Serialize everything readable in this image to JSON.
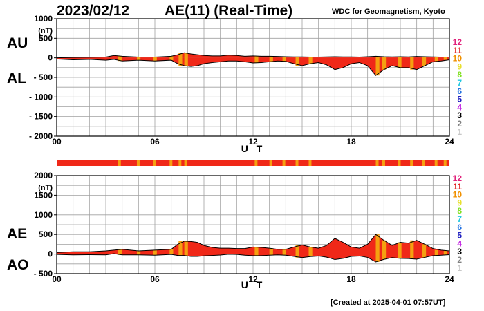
{
  "header": {
    "date": "2023/02/12",
    "title": "AE(11) (Real-Time)",
    "org": "WDC for Geomagnetism, Kyoto"
  },
  "labels": {
    "au": "AU",
    "al": "AL",
    "ae": "AE",
    "ao": "AO"
  },
  "footer": {
    "created": "[Created at 2025-04-01 07:57UT]"
  },
  "colors": {
    "fill": "#f02818",
    "fill_gap": "#f5a010",
    "grid": "#a0a0a0"
  },
  "stations_legend": [
    {
      "n": "12",
      "color": "#e0207a"
    },
    {
      "n": "11",
      "color": "#e02020"
    },
    {
      "n": "10",
      "color": "#f09000"
    },
    {
      "n": "9",
      "color": "#e8e030"
    },
    {
      "n": "8",
      "color": "#80e020"
    },
    {
      "n": "7",
      "color": "#20c8e0"
    },
    {
      "n": "6",
      "color": "#2070e0"
    },
    {
      "n": "5",
      "color": "#2020c0"
    },
    {
      "n": "4",
      "color": "#c020e0"
    },
    {
      "n": "3",
      "color": "#000000"
    },
    {
      "n": "2",
      "color": "#808080"
    },
    {
      "n": "1",
      "color": "#c8c8c8"
    }
  ],
  "chart_data": [
    {
      "type": "area",
      "panel": "AU/AL",
      "xlabel": "U T",
      "unit": "(nT)",
      "xlim": [
        0,
        24
      ],
      "ylim": [
        -2000,
        1000
      ],
      "xticks": [
        "00",
        "06",
        "12",
        "18",
        "24"
      ],
      "yticks": [
        "1000",
        "500",
        "0",
        "- 500",
        "- 1000",
        "- 1500",
        "- 2000"
      ],
      "series": [
        {
          "name": "AU",
          "x": [
            0,
            1,
            2,
            3,
            3.5,
            4,
            5,
            6,
            7,
            7.4,
            7.8,
            8.2,
            8.6,
            9,
            9.5,
            10,
            10.5,
            11,
            11.5,
            12,
            12.5,
            13,
            13.5,
            14,
            14.5,
            15,
            15.5,
            16,
            16.5,
            17,
            17.5,
            18,
            18.5,
            19,
            19.5,
            20,
            20.5,
            21,
            21.5,
            22,
            22.5,
            23,
            23.5,
            24
          ],
          "values": [
            0,
            10,
            15,
            20,
            60,
            40,
            20,
            20,
            40,
            80,
            130,
            100,
            80,
            60,
            50,
            50,
            70,
            60,
            40,
            50,
            40,
            40,
            35,
            30,
            25,
            25,
            20,
            20,
            25,
            30,
            25,
            25,
            20,
            30,
            40,
            30,
            25,
            30,
            25,
            35,
            30,
            25,
            20,
            20
          ]
        },
        {
          "name": "AL",
          "x": [
            0,
            1,
            2,
            3,
            3.5,
            4,
            5,
            6,
            7,
            7.4,
            7.8,
            8.2,
            8.6,
            9,
            9.5,
            10,
            10.5,
            11,
            11.5,
            12,
            12.5,
            13,
            13.5,
            14,
            14.5,
            15,
            15.5,
            16,
            16.5,
            17,
            17.5,
            18,
            18.5,
            19,
            19.5,
            20,
            20.5,
            21,
            21.5,
            22,
            22.5,
            23,
            23.5,
            24
          ],
          "values": [
            -30,
            -50,
            -40,
            -60,
            -40,
            -80,
            -60,
            -80,
            -60,
            -150,
            -200,
            -220,
            -200,
            -150,
            -120,
            -100,
            -80,
            -80,
            -100,
            -130,
            -120,
            -100,
            -80,
            -90,
            -150,
            -200,
            -150,
            -120,
            -180,
            -300,
            -250,
            -150,
            -120,
            -200,
            -450,
            -300,
            -200,
            -250,
            -250,
            -300,
            -200,
            -100,
            -80,
            -50
          ]
        }
      ]
    },
    {
      "type": "area",
      "panel": "AE/AO",
      "xlabel": "U T",
      "unit": "(nT)",
      "xlim": [
        0,
        24
      ],
      "ylim": [
        -500,
        2000
      ],
      "xticks": [
        "00",
        "06",
        "12",
        "18",
        "24"
      ],
      "yticks": [
        "2000",
        "1500",
        "1000",
        "500",
        "0",
        "- 500"
      ],
      "series": [
        {
          "name": "AE",
          "x": [
            0,
            1,
            2,
            3,
            3.5,
            4,
            5,
            6,
            7,
            7.4,
            7.8,
            8.2,
            8.6,
            9,
            9.5,
            10,
            10.5,
            11,
            11.5,
            12,
            12.5,
            13,
            13.5,
            14,
            14.5,
            15,
            15.5,
            16,
            16.5,
            17,
            17.5,
            18,
            18.5,
            19,
            19.5,
            20,
            20.5,
            21,
            21.5,
            22,
            22.5,
            23,
            23.5,
            24
          ],
          "values": [
            40,
            60,
            60,
            80,
            100,
            120,
            80,
            100,
            120,
            250,
            330,
            320,
            300,
            220,
            170,
            150,
            150,
            140,
            140,
            180,
            170,
            150,
            120,
            120,
            180,
            230,
            180,
            150,
            220,
            400,
            300,
            180,
            150,
            250,
            500,
            350,
            220,
            300,
            280,
            350,
            250,
            140,
            100,
            80
          ]
        },
        {
          "name": "AO",
          "x": [
            0,
            1,
            2,
            3,
            3.5,
            4,
            5,
            6,
            7,
            7.4,
            7.8,
            8.2,
            8.6,
            9,
            9.5,
            10,
            10.5,
            11,
            11.5,
            12,
            12.5,
            13,
            13.5,
            14,
            14.5,
            15,
            15.5,
            16,
            16.5,
            17,
            17.5,
            18,
            18.5,
            19,
            19.5,
            20,
            20.5,
            21,
            21.5,
            22,
            22.5,
            23,
            23.5,
            24
          ],
          "values": [
            -10,
            -20,
            -15,
            -20,
            10,
            -20,
            -20,
            -30,
            -10,
            -35,
            -35,
            -60,
            -60,
            -45,
            -35,
            -25,
            -5,
            -10,
            -30,
            -40,
            -40,
            -30,
            -20,
            -30,
            -60,
            -90,
            -65,
            -50,
            -80,
            -140,
            -110,
            -60,
            -50,
            -85,
            -200,
            -135,
            -90,
            -110,
            -115,
            -130,
            -85,
            -40,
            -30,
            -15
          ]
        }
      ]
    }
  ],
  "station_bar_gaps": [
    3.75,
    4.9,
    5.9,
    6.9,
    7.45,
    7.8,
    12.1,
    13,
    13.8,
    14.6,
    15.4,
    19.5,
    19.9,
    20.85,
    21.6,
    22.35,
    23.1,
    23.65
  ]
}
